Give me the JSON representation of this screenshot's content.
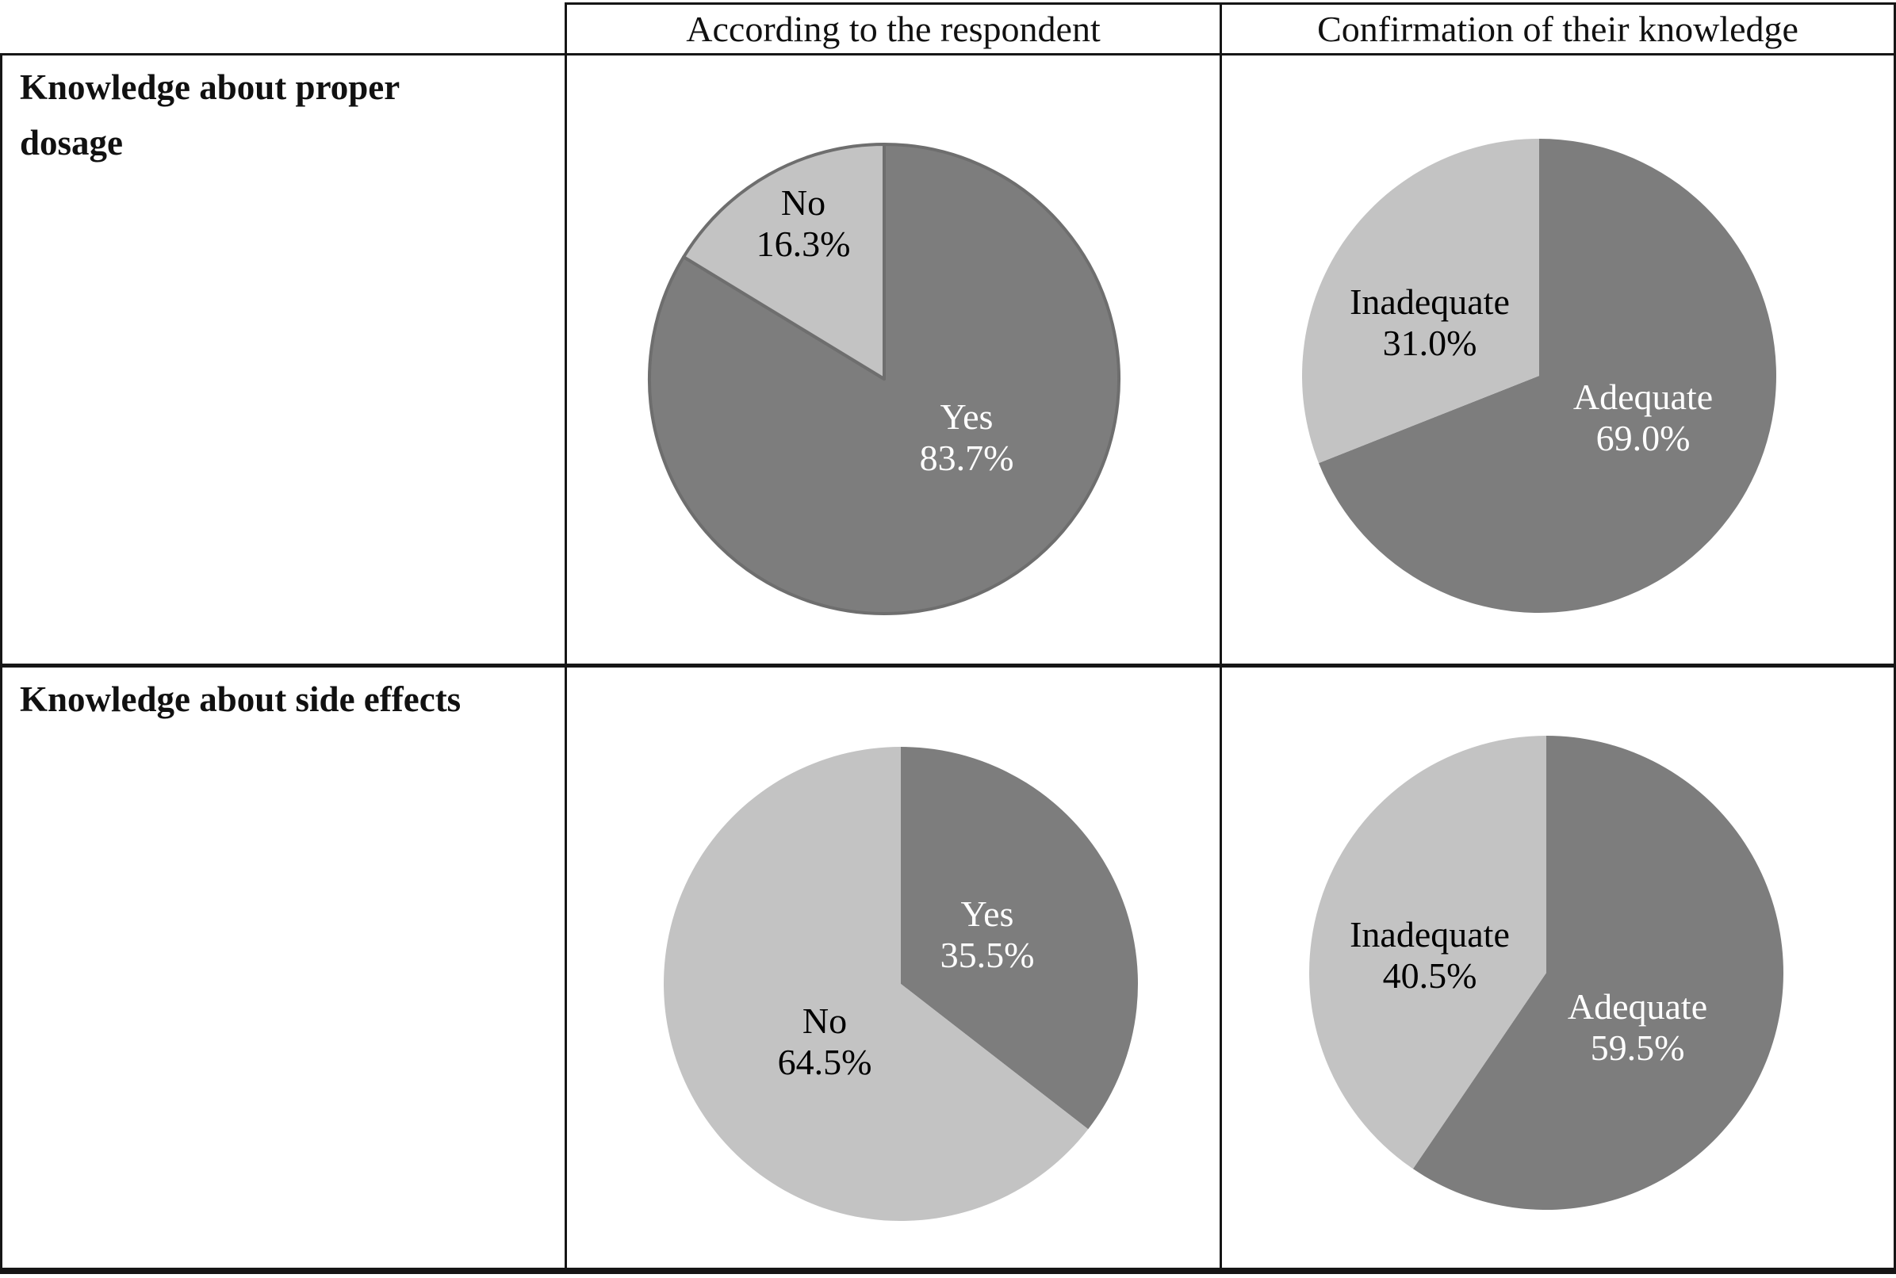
{
  "figure": {
    "column_headers": [
      "According to the respondent",
      "Confirmation of their knowledge"
    ],
    "row_labels": [
      "Knowledge about proper dosage",
      "Knowledge about side effects"
    ]
  },
  "colors": {
    "slice_dark": "#7d7d7d",
    "slice_light": "#c3c3c3",
    "pie_outline": "#6e6e6e",
    "table_border": "#161616",
    "label_on_dark": "#ffffff",
    "label_on_light": "#000000",
    "background": "#ffffff"
  },
  "chart_data": [
    {
      "type": "pie",
      "row": "Knowledge about proper dosage",
      "column": "According to the respondent",
      "start_angle_deg": 0,
      "direction": "clockwise",
      "outlined": true,
      "slices": [
        {
          "label": "Yes",
          "value": 83.7,
          "pct_text": "83.7%",
          "shade": "dark"
        },
        {
          "label": "No",
          "value": 16.3,
          "pct_text": "16.3%",
          "shade": "light"
        }
      ]
    },
    {
      "type": "pie",
      "row": "Knowledge about proper dosage",
      "column": "Confirmation of their knowledge",
      "start_angle_deg": 0,
      "direction": "clockwise",
      "outlined": false,
      "slices": [
        {
          "label": "Adequate",
          "value": 69.0,
          "pct_text": "69.0%",
          "shade": "dark"
        },
        {
          "label": "Inadequate",
          "value": 31.0,
          "pct_text": "31.0%",
          "shade": "light"
        }
      ]
    },
    {
      "type": "pie",
      "row": "Knowledge about side effects",
      "column": "According to the respondent",
      "start_angle_deg": 0,
      "direction": "clockwise",
      "outlined": false,
      "slices": [
        {
          "label": "Yes",
          "value": 35.5,
          "pct_text": "35.5%",
          "shade": "dark"
        },
        {
          "label": "No",
          "value": 64.5,
          "pct_text": "64.5%",
          "shade": "light"
        }
      ]
    },
    {
      "type": "pie",
      "row": "Knowledge about side effects",
      "column": "Confirmation of their knowledge",
      "start_angle_deg": 0,
      "direction": "clockwise",
      "outlined": false,
      "slices": [
        {
          "label": "Adequate",
          "value": 59.5,
          "pct_text": "59.5%",
          "shade": "dark"
        },
        {
          "label": "Inadequate",
          "value": 40.5,
          "pct_text": "40.5%",
          "shade": "light"
        }
      ]
    }
  ]
}
